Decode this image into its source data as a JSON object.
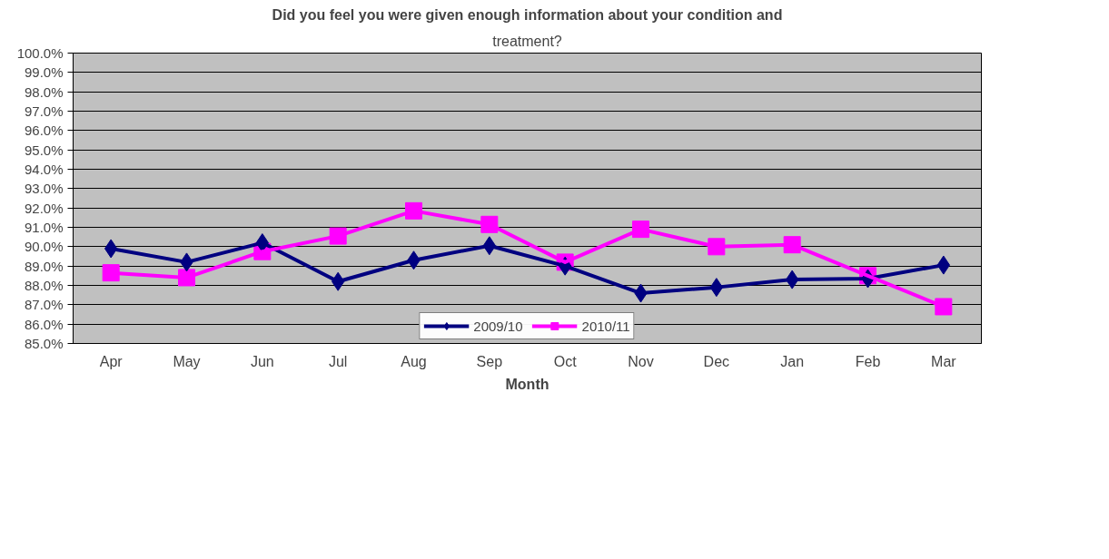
{
  "chart_data": {
    "type": "line",
    "title": "Did you feel you were given enough information about your condition and",
    "subtitle": "treatment?",
    "xlabel": "Month",
    "categories": [
      "Apr",
      "May",
      "Jun",
      "Jul",
      "Aug",
      "Sep",
      "Oct",
      "Nov",
      "Dec",
      "Jan",
      "Feb",
      "Mar"
    ],
    "series": [
      {
        "name": "2009/10",
        "color": "#000080",
        "marker": "diamond",
        "values": [
          89.9,
          89.2,
          90.2,
          88.2,
          89.3,
          90.05,
          89.0,
          87.6,
          87.9,
          88.3,
          88.35,
          89.05
        ]
      },
      {
        "name": "2010/11",
        "color": "#ff00ff",
        "marker": "square",
        "values": [
          88.65,
          88.4,
          89.75,
          90.55,
          91.85,
          91.15,
          89.2,
          90.9,
          90.0,
          90.1,
          88.5,
          86.9
        ]
      }
    ],
    "ylim": [
      85,
      100
    ],
    "yticks": [
      {
        "value": 85,
        "label": "85.0%"
      },
      {
        "value": 86,
        "label": "86.0%"
      },
      {
        "value": 87,
        "label": "87.0%"
      },
      {
        "value": 88,
        "label": "88.0%"
      },
      {
        "value": 89,
        "label": "89.0%"
      },
      {
        "value": 90,
        "label": "90.0%"
      },
      {
        "value": 91,
        "label": "91.0%"
      },
      {
        "value": 92,
        "label": "92.0%"
      },
      {
        "value": 93,
        "label": "93.0%"
      },
      {
        "value": 94,
        "label": "94.0%"
      },
      {
        "value": 95,
        "label": "95.0%"
      },
      {
        "value": 96,
        "label": "96.0%"
      },
      {
        "value": 97,
        "label": "97.0%"
      },
      {
        "value": 98,
        "label": "98.0%"
      },
      {
        "value": 99,
        "label": "99.0%"
      },
      {
        "value": 100,
        "label": "100.0%"
      }
    ],
    "grid": "y",
    "legend": "bottom",
    "line_style": "solid"
  }
}
